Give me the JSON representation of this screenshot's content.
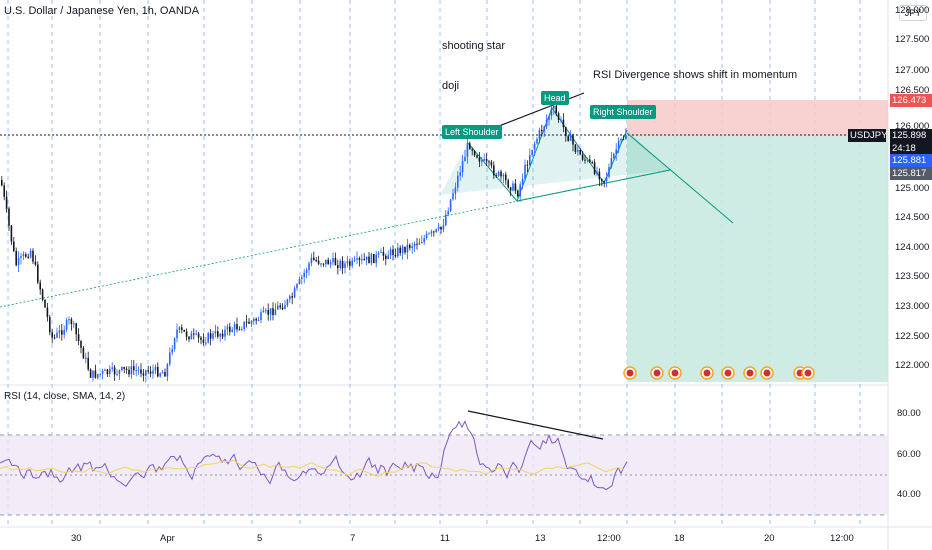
{
  "header": {
    "title": "U.S. Dollar / Japanese Yen, 1h, OANDA",
    "currency_button": "JPY"
  },
  "annotations": {
    "shooting_star": "shooting star",
    "doji": "doji",
    "rsi_divergence": "RSI Divergence shows shift in momentum",
    "left_shoulder": "Left Shoulder",
    "head": "Head",
    "right_shoulder": "Right Shoulder"
  },
  "price_axis": {
    "ticks": [
      "128.000",
      "127.500",
      "127.000",
      "126.500",
      "126.000",
      "125.000",
      "124.500",
      "124.000",
      "123.500",
      "123.000",
      "122.500",
      "122.000"
    ],
    "labels": {
      "target": "126.473",
      "symbol": "USDJPY",
      "last": "125.898",
      "countdown": "24:18",
      "bid": "125.881",
      "ask": "125.817"
    }
  },
  "rsi_panel": {
    "title": "RSI (14, close, SMA, 14, 2)",
    "ticks": [
      "80.00",
      "60.00",
      "40.00"
    ]
  },
  "time_axis": {
    "labels": [
      "30",
      "Apr",
      "5",
      "7",
      "11",
      "13",
      "12:00",
      "18",
      "20",
      "12:00"
    ]
  },
  "colors": {
    "bull": "#2962ff",
    "bear": "#131722",
    "stop_zone": "#f7c9c9",
    "target_zone": "#c6e9df",
    "pattern_green": "#089981",
    "rsi_line": "#7e57c2",
    "rsi_ma": "#f0d55b",
    "rsi_band": "#ede7f6",
    "symbol_label": "#131722",
    "target_label": "#ef5350",
    "bid_label": "#2962ff",
    "ask_label": "#555b66"
  }
}
